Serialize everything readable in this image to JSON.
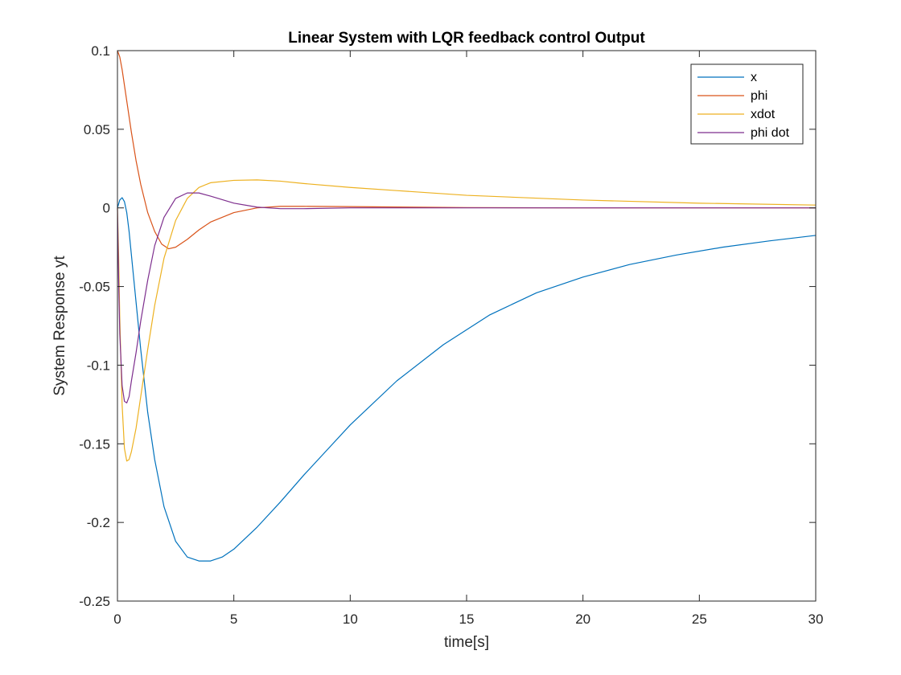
{
  "chart_data": {
    "type": "line",
    "title": "Linear System with LQR feedback control Output",
    "xlabel": "time[s]",
    "ylabel": "System Response yt",
    "xlim": [
      0,
      30
    ],
    "ylim": [
      -0.25,
      0.1
    ],
    "xticks": [
      0,
      5,
      10,
      15,
      20,
      25,
      30
    ],
    "xtick_labels": [
      "0",
      "5",
      "10",
      "15",
      "20",
      "25",
      "30"
    ],
    "yticks": [
      -0.25,
      -0.2,
      -0.15,
      -0.1,
      -0.05,
      0,
      0.05,
      0.1
    ],
    "ytick_labels": [
      "-0.25",
      "-0.2",
      "-0.15",
      "-0.1",
      "-0.05",
      "0",
      "0.05",
      "0.1"
    ],
    "grid": false,
    "legend_position": "top-right",
    "series": [
      {
        "name": "x",
        "color": "#0072BD",
        "x": [
          0,
          0.1,
          0.2,
          0.3,
          0.4,
          0.5,
          0.7,
          1.0,
          1.3,
          1.6,
          2.0,
          2.5,
          3.0,
          3.5,
          4.0,
          4.5,
          5.0,
          6.0,
          7.0,
          8.0,
          9.0,
          10.0,
          12.0,
          14.0,
          16.0,
          18.0,
          20.0,
          22.0,
          24.0,
          26.0,
          28.0,
          30.0
        ],
        "y": [
          0,
          0.005,
          0.0065,
          0.004,
          -0.003,
          -0.015,
          -0.045,
          -0.09,
          -0.13,
          -0.16,
          -0.19,
          -0.212,
          -0.222,
          -0.2245,
          -0.2245,
          -0.222,
          -0.217,
          -0.203,
          -0.187,
          -0.17,
          -0.154,
          -0.138,
          -0.11,
          -0.087,
          -0.068,
          -0.054,
          -0.044,
          -0.036,
          -0.03,
          -0.025,
          -0.021,
          -0.0175
        ]
      },
      {
        "name": "phi",
        "color": "#D95319",
        "x": [
          0,
          0.1,
          0.2,
          0.4,
          0.6,
          0.8,
          1.0,
          1.3,
          1.6,
          1.9,
          2.2,
          2.5,
          3.0,
          3.5,
          4.0,
          5.0,
          6.0,
          7.0,
          8.0,
          10.0,
          15.0,
          20.0,
          30.0
        ],
        "y": [
          0.1,
          0.096,
          0.088,
          0.068,
          0.048,
          0.03,
          0.015,
          -0.003,
          -0.015,
          -0.023,
          -0.026,
          -0.025,
          -0.02,
          -0.014,
          -0.009,
          -0.003,
          0.0,
          0.001,
          0.001,
          0.0008,
          0.0002,
          0.0,
          0.0
        ]
      },
      {
        "name": "xdot",
        "color": "#EDB120",
        "x": [
          0,
          0.05,
          0.1,
          0.2,
          0.3,
          0.4,
          0.5,
          0.6,
          0.8,
          1.0,
          1.3,
          1.6,
          2.0,
          2.5,
          3.0,
          3.5,
          4.0,
          5.0,
          6.0,
          7.0,
          8.0,
          10.0,
          12.0,
          15.0,
          20.0,
          25.0,
          30.0
        ],
        "y": [
          0,
          -0.03,
          -0.07,
          -0.125,
          -0.153,
          -0.161,
          -0.16,
          -0.155,
          -0.14,
          -0.12,
          -0.09,
          -0.062,
          -0.032,
          -0.008,
          0.006,
          0.013,
          0.016,
          0.0175,
          0.0178,
          0.017,
          0.0155,
          0.013,
          0.011,
          0.008,
          0.005,
          0.003,
          0.0018
        ]
      },
      {
        "name": "phi dot",
        "color": "#7E2F8E",
        "x": [
          0,
          0.05,
          0.1,
          0.2,
          0.3,
          0.4,
          0.5,
          0.6,
          0.8,
          1.0,
          1.3,
          1.6,
          2.0,
          2.5,
          3.0,
          3.5,
          4.0,
          5.0,
          6.0,
          7.0,
          8.0,
          10.0,
          15.0,
          30.0
        ],
        "y": [
          0,
          -0.045,
          -0.08,
          -0.113,
          -0.123,
          -0.124,
          -0.12,
          -0.11,
          -0.092,
          -0.072,
          -0.046,
          -0.024,
          -0.006,
          0.006,
          0.0095,
          0.0095,
          0.0075,
          0.003,
          0.0005,
          -0.0005,
          -0.0005,
          0.0,
          0.0,
          0.0
        ]
      }
    ]
  }
}
